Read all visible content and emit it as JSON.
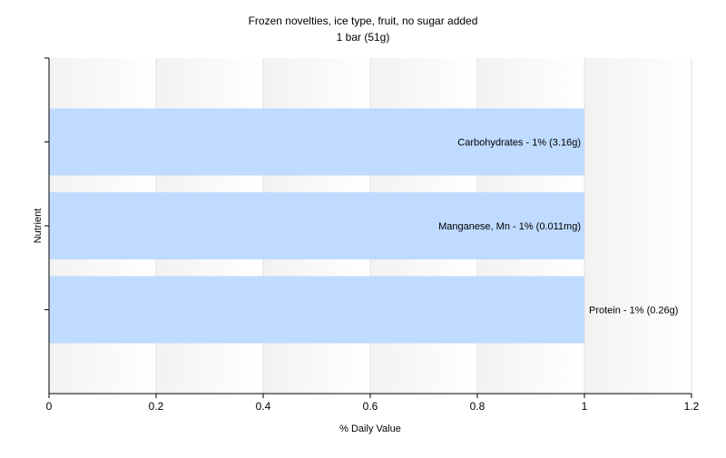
{
  "chart_data": {
    "type": "bar",
    "orientation": "horizontal",
    "title": "Frozen novelties, ice type, fruit, no sugar added",
    "subtitle": "1 bar (51g)",
    "xlabel": "% Daily Value",
    "ylabel": "Nutrient",
    "xlim": [
      0,
      1.2
    ],
    "xticks": [
      "0",
      "0.2",
      "0.4",
      "0.6",
      "0.8",
      "1",
      "1.2"
    ],
    "grid": true,
    "bar_color": "#bfdbff",
    "bars": [
      {
        "label": "Carbohydrates - 1% (3.16g)",
        "value": 1.0
      },
      {
        "label": "Manganese, Mn - 1% (0.011mg)",
        "value": 1.0
      },
      {
        "label": "Protein - 1% (0.26g)",
        "value": 1.0
      }
    ]
  }
}
